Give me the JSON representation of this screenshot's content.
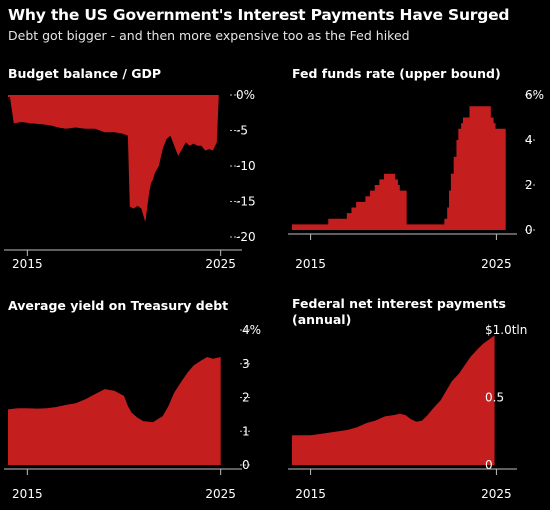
{
  "title": "Why the US Government's Interest Payments Have Surged",
  "subtitle": "Debt got bigger - and then more expensive too as the Fed hiked",
  "colors": {
    "fill": "#c41e1e",
    "axis": "#bfbfbf",
    "background": "#000000",
    "text": "#ffffff"
  },
  "chart_data": [
    {
      "type": "area",
      "title": "Budget balance / GDP",
      "x_ticks": [
        "2015",
        "2025"
      ],
      "y_ticks": [
        "0%",
        "-5",
        "-10",
        "-15",
        "-20"
      ],
      "ylim": [
        -21,
        0
      ],
      "xlim": [
        2014.0,
        2026.0
      ],
      "baseline": 0,
      "x": [
        2014.0,
        2014.1,
        2014.3,
        2014.7,
        2015.2,
        2015.7,
        2016.2,
        2016.6,
        2017.0,
        2017.5,
        2018.0,
        2018.5,
        2019.0,
        2019.5,
        2019.9,
        2020.2,
        2020.3,
        2020.5,
        2020.7,
        2020.9,
        2021.1,
        2021.3,
        2021.4,
        2021.5,
        2021.6,
        2021.8,
        2022.0,
        2022.2,
        2022.4,
        2022.6,
        2022.8,
        2023.0,
        2023.2,
        2023.4,
        2023.6,
        2023.8,
        2024.0,
        2024.2,
        2024.4,
        2024.6,
        2024.8,
        2024.9
      ],
      "values": [
        -0.3,
        -0.3,
        -4.2,
        -4.0,
        -4.2,
        -4.3,
        -4.5,
        -4.8,
        -5.0,
        -4.8,
        -5.0,
        -5.0,
        -5.5,
        -5.5,
        -5.7,
        -6.0,
        -16.5,
        -16.8,
        -16.4,
        -16.8,
        -18.8,
        -14.5,
        -13.0,
        -12.5,
        -11.5,
        -10.5,
        -8.0,
        -6.5,
        -6.0,
        -7.5,
        -9.0,
        -8.0,
        -7.0,
        -7.5,
        -7.2,
        -7.5,
        -7.5,
        -8.2,
        -8.0,
        -8.2,
        -7.0,
        -0.3
      ]
    },
    {
      "type": "area",
      "title": "Fed funds rate (upper bound)",
      "x_ticks": [
        "2015",
        "2025"
      ],
      "y_ticks": [
        "6%",
        "4",
        "2",
        "0"
      ],
      "ylim": [
        0,
        6
      ],
      "xlim": [
        2014.0,
        2026.0
      ],
      "x": [
        2014.0,
        2015.95,
        2015.95,
        2016.95,
        2016.95,
        2017.2,
        2017.2,
        2017.45,
        2017.45,
        2017.95,
        2017.95,
        2018.2,
        2018.2,
        2018.45,
        2018.45,
        2018.7,
        2018.7,
        2018.95,
        2018.95,
        2019.55,
        2019.55,
        2019.7,
        2019.7,
        2019.8,
        2019.8,
        2020.17,
        2020.17,
        2020.25,
        2020.25,
        2022.2,
        2022.2,
        2022.35,
        2022.35,
        2022.45,
        2022.45,
        2022.55,
        2022.55,
        2022.7,
        2022.7,
        2022.85,
        2022.85,
        2022.95,
        2022.95,
        2023.1,
        2023.1,
        2023.2,
        2023.2,
        2023.55,
        2023.55,
        2024.7,
        2024.7,
        2024.85,
        2024.85,
        2024.95,
        2024.95,
        2025.5
      ],
      "values": [
        0.25,
        0.25,
        0.5,
        0.5,
        0.75,
        0.75,
        1.0,
        1.0,
        1.25,
        1.25,
        1.5,
        1.5,
        1.75,
        1.75,
        2.0,
        2.0,
        2.25,
        2.25,
        2.5,
        2.5,
        2.25,
        2.25,
        2.0,
        2.0,
        1.75,
        1.75,
        0.25,
        0.25,
        0.25,
        0.25,
        0.5,
        0.5,
        1.0,
        1.0,
        1.75,
        1.75,
        2.5,
        2.5,
        3.25,
        3.25,
        4.0,
        4.0,
        4.5,
        4.5,
        4.75,
        4.75,
        5.0,
        5.0,
        5.5,
        5.5,
        5.0,
        5.0,
        4.75,
        4.75,
        4.5,
        4.5
      ]
    },
    {
      "type": "area",
      "title": "Average yield on Treasury debt",
      "x_ticks": [
        "2015",
        "2025"
      ],
      "y_ticks": [
        "4%",
        "3",
        "2",
        "1",
        "0"
      ],
      "ylim": [
        0,
        4
      ],
      "xlim": [
        2014.0,
        2026.0
      ],
      "x": [
        2014.0,
        2014.5,
        2015.0,
        2015.5,
        2016.0,
        2016.5,
        2017.0,
        2017.5,
        2018.0,
        2018.5,
        2019.0,
        2019.5,
        2020.0,
        2020.2,
        2020.4,
        2020.7,
        2021.0,
        2021.5,
        2022.0,
        2022.3,
        2022.6,
        2023.0,
        2023.3,
        2023.6,
        2024.0,
        2024.3,
        2024.6,
        2025.0
      ],
      "values": [
        1.65,
        1.68,
        1.68,
        1.67,
        1.68,
        1.72,
        1.78,
        1.83,
        1.95,
        2.1,
        2.25,
        2.2,
        2.05,
        1.75,
        1.55,
        1.4,
        1.3,
        1.27,
        1.45,
        1.75,
        2.15,
        2.5,
        2.75,
        2.95,
        3.1,
        3.2,
        3.15,
        3.2
      ]
    },
    {
      "type": "area",
      "title": "Federal net interest payments\n(annual)",
      "x_ticks": [
        "2015",
        "2025"
      ],
      "y_ticks": [
        "$1.0tln",
        "0.5",
        "0"
      ],
      "ylim": [
        0,
        1.0
      ],
      "xlim": [
        2014.0,
        2026.0
      ],
      "x": [
        2014.0,
        2014.5,
        2015.0,
        2015.5,
        2016.0,
        2016.5,
        2017.0,
        2017.5,
        2018.0,
        2018.5,
        2019.0,
        2019.5,
        2019.8,
        2020.1,
        2020.4,
        2020.7,
        2021.0,
        2021.3,
        2021.6,
        2022.0,
        2022.3,
        2022.6,
        2023.0,
        2023.3,
        2023.6,
        2024.0,
        2024.3,
        2024.6,
        2024.9
      ],
      "values": [
        0.22,
        0.22,
        0.22,
        0.23,
        0.24,
        0.25,
        0.26,
        0.28,
        0.31,
        0.33,
        0.36,
        0.37,
        0.38,
        0.37,
        0.34,
        0.32,
        0.33,
        0.37,
        0.42,
        0.48,
        0.55,
        0.62,
        0.68,
        0.74,
        0.8,
        0.86,
        0.9,
        0.93,
        0.96
      ]
    }
  ]
}
